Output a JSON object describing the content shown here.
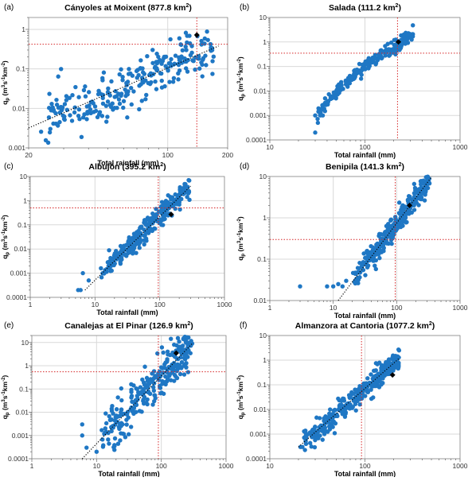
{
  "figure": {
    "colors": {
      "points": "#1f77c4",
      "trend": "#000000",
      "threshold": "#d62728",
      "grid": "#d9d9d9",
      "highlight": "#000000"
    },
    "panels_note": "six log-log scatter panels of peak discharge vs total rainfall"
  },
  "chart_data": [
    {
      "type": "scatter",
      "panel_label": "(a)",
      "title_text": "Cányoles at Moixent (877.8 km",
      "title_sup": "2",
      "title_close": ")",
      "xlabel": "Total rainfall (mm)",
      "ylabel": "q",
      "ylabel_sub": "p",
      "ylabel_units": " (m",
      "ylabel_u1": "3",
      "ylabel_mid": "s",
      "ylabel_u2": "-1",
      "ylabel_mid2": "km",
      "ylabel_u3": "-2",
      "ylabel_close": ")",
      "x_scale": "log",
      "y_scale": "log",
      "xlim": [
        20,
        200
      ],
      "ylim": [
        0.001,
        2
      ],
      "xticks": [
        {
          "v": 20,
          "label": "20"
        },
        {
          "v": 100,
          "label": "100"
        },
        {
          "v": 200,
          "label": "200"
        }
      ],
      "yticks": [
        {
          "v": 0.001,
          "label": "0.001"
        },
        {
          "v": 0.01,
          "label": "0.01"
        },
        {
          "v": 0.1,
          "label": "0.1"
        },
        {
          "v": 1,
          "label": "1"
        }
      ],
      "threshold_x": 140,
      "threshold_y": 0.42,
      "trend": {
        "x": [
          20,
          180
        ],
        "y": [
          0.0032,
          0.38
        ]
      },
      "highlight": {
        "x": 140,
        "y": 0.72
      },
      "cloud": {
        "seed": 11,
        "n": 260,
        "xmin": 23,
        "xmax": 170,
        "spread": 0.32,
        "tilt": 0.9
      },
      "extra_points": [
        [
          165,
          0.33
        ],
        [
          150,
          0.17
        ]
      ]
    },
    {
      "type": "scatter",
      "panel_label": "(b)",
      "title_text": "Salada (111.2 km",
      "title_sup": "2",
      "title_close": ")",
      "xlabel": "Total rainfall (mm)",
      "ylabel": "q",
      "ylabel_sub": "p",
      "ylabel_units": " (m",
      "ylabel_u1": "3",
      "ylabel_mid": "s",
      "ylabel_u2": "-1",
      "ylabel_mid2": "km",
      "ylabel_u3": "-2",
      "ylabel_close": ")",
      "x_scale": "log",
      "y_scale": "log",
      "xlim": [
        10,
        1000
      ],
      "ylim": [
        0.0001,
        10
      ],
      "xticks": [
        {
          "v": 10,
          "label": "10"
        },
        {
          "v": 100,
          "label": "100"
        },
        {
          "v": 1000,
          "label": "1000"
        }
      ],
      "yticks": [
        {
          "v": 0.0001,
          "label": "0.0001"
        },
        {
          "v": 0.001,
          "label": "0.001"
        },
        {
          "v": 0.01,
          "label": "0.01"
        },
        {
          "v": 0.1,
          "label": "0.1"
        },
        {
          "v": 1,
          "label": "1"
        },
        {
          "v": 10,
          "label": "10"
        }
      ],
      "threshold_x": 220,
      "threshold_y": 0.35,
      "trend": null,
      "highlight": {
        "x": 225,
        "y": 1.0
      },
      "cloud": {
        "seed": 23,
        "n": 230,
        "xmin": 30,
        "xmax": 320,
        "spread": 0.12,
        "tilt": 1.0
      },
      "curve": {
        "x": [
          30,
          60,
          100,
          150,
          220,
          320
        ],
        "y": [
          0.001,
          0.02,
          0.12,
          0.3,
          0.7,
          2.6
        ]
      },
      "extra_points": [
        [
          30,
          0.0002
        ],
        [
          32,
          0.0005
        ],
        [
          30,
          0.001
        ],
        [
          34,
          0.001
        ],
        [
          36,
          0.001
        ],
        [
          38,
          0.0015
        ],
        [
          40,
          0.003
        ]
      ]
    },
    {
      "type": "scatter",
      "panel_label": "(c)",
      "title_text": "Albujón (395.2 km",
      "title_sup": "2",
      "title_close": ")",
      "xlabel": "Total rainfall (mm)",
      "ylabel": "q",
      "ylabel_sub": "p",
      "ylabel_units": " (m",
      "ylabel_u1": "3",
      "ylabel_mid": "s",
      "ylabel_u2": "-1",
      "ylabel_mid2": "km",
      "ylabel_u3": "-2",
      "ylabel_close": ")",
      "x_scale": "log",
      "y_scale": "log",
      "xlim": [
        1,
        1000
      ],
      "ylim": [
        0.0001,
        10
      ],
      "xticks": [
        {
          "v": 1,
          "label": "1"
        },
        {
          "v": 10,
          "label": "10"
        },
        {
          "v": 100,
          "label": "100"
        },
        {
          "v": 1000,
          "label": "1000"
        }
      ],
      "yticks": [
        {
          "v": 0.0001,
          "label": "0.0001"
        },
        {
          "v": 0.001,
          "label": "0.001"
        },
        {
          "v": 0.01,
          "label": "0.01"
        },
        {
          "v": 0.1,
          "label": "0.1"
        },
        {
          "v": 1,
          "label": "1"
        },
        {
          "v": 10,
          "label": "10"
        }
      ],
      "threshold_x": 95,
      "threshold_y": 0.5,
      "trend": {
        "x": [
          7,
          300
        ],
        "y": [
          0.0002,
          4
        ]
      },
      "highlight": {
        "x": 150,
        "y": 0.27
      },
      "cloud": {
        "seed": 37,
        "n": 300,
        "xmin": 12,
        "xmax": 290,
        "spread": 0.22,
        "tilt": 1.0
      },
      "extra_points": [
        [
          5.5,
          0.0002
        ],
        [
          6,
          0.0002
        ],
        [
          6.5,
          0.001
        ],
        [
          8,
          0.0005
        ]
      ]
    },
    {
      "type": "scatter",
      "panel_label": "(d)",
      "title_text": "Benipila (141.3 km",
      "title_sup": "2",
      "title_close": ")",
      "xlabel": "Total rainfall (mm)",
      "ylabel": "q",
      "ylabel_sub": "p",
      "ylabel_units": " (m",
      "ylabel_u1": "3",
      "ylabel_mid": "s",
      "ylabel_u2": "-1",
      "ylabel_mid2": "km",
      "ylabel_u3": "-2",
      "ylabel_close": ")",
      "x_scale": "log",
      "y_scale": "log",
      "xlim": [
        1,
        1000
      ],
      "ylim": [
        0.01,
        10
      ],
      "xticks": [
        {
          "v": 1,
          "label": "1"
        },
        {
          "v": 10,
          "label": "10"
        },
        {
          "v": 100,
          "label": "100"
        },
        {
          "v": 1000,
          "label": "1000"
        }
      ],
      "yticks": [
        {
          "v": 0.01,
          "label": "0.01"
        },
        {
          "v": 0.1,
          "label": "0.1"
        },
        {
          "v": 1,
          "label": "1"
        },
        {
          "v": 10,
          "label": "10"
        }
      ],
      "threshold_x": 95,
      "threshold_y": 0.3,
      "trend": {
        "x": [
          12,
          360
        ],
        "y": [
          0.01,
          10
        ]
      },
      "highlight": {
        "x": 160,
        "y": 2.0
      },
      "cloud": {
        "seed": 51,
        "n": 300,
        "xmin": 20,
        "xmax": 330,
        "spread": 0.14,
        "tilt": 1.0
      },
      "extra_points": [
        [
          3,
          0.022
        ],
        [
          8,
          0.022
        ],
        [
          10,
          0.022
        ],
        [
          12,
          0.025
        ],
        [
          14,
          0.022
        ],
        [
          16,
          0.03
        ]
      ]
    },
    {
      "type": "scatter",
      "panel_label": "(e)",
      "title_text": "Canalejas at El Pinar (126.9 km",
      "title_sup": "2",
      "title_close": ")",
      "xlabel": "Total rainfall (mm)",
      "ylabel": "q",
      "ylabel_sub": "p",
      "ylabel_units": " (m",
      "ylabel_u1": "3",
      "ylabel_mid": "s",
      "ylabel_u2": "-1",
      "ylabel_mid2": "km",
      "ylabel_u3": "-2",
      "ylabel_close": ")",
      "x_scale": "log",
      "y_scale": "log",
      "xlim": [
        1,
        1000
      ],
      "ylim": [
        0.0001,
        20
      ],
      "xticks": [
        {
          "v": 1,
          "label": "1"
        },
        {
          "v": 10,
          "label": "10"
        },
        {
          "v": 100,
          "label": "100"
        },
        {
          "v": 1000,
          "label": "1000"
        }
      ],
      "yticks": [
        {
          "v": 0.0001,
          "label": "0.0001"
        },
        {
          "v": 0.001,
          "label": "0.001"
        },
        {
          "v": 0.01,
          "label": "0.01"
        },
        {
          "v": 0.1,
          "label": "0.1"
        },
        {
          "v": 1,
          "label": "1"
        },
        {
          "v": 10,
          "label": "10"
        }
      ],
      "threshold_x": 90,
      "threshold_y": 0.55,
      "trend": {
        "x": [
          6,
          300
        ],
        "y": [
          0.0001,
          9
        ]
      },
      "highlight": {
        "x": 170,
        "y": 3.5
      },
      "cloud": {
        "seed": 67,
        "n": 280,
        "xmin": 12,
        "xmax": 290,
        "spread": 0.45,
        "tilt": 1.0
      },
      "extra_points": [
        [
          6,
          0.003
        ],
        [
          6,
          0.001
        ],
        [
          7,
          0.0003
        ],
        [
          10,
          0.0002
        ],
        [
          300,
          9
        ]
      ]
    },
    {
      "type": "scatter",
      "panel_label": "(f)",
      "title_text": "Almanzora at Cantoria (1077.2 km",
      "title_sup": "2",
      "title_close": ")",
      "xlabel": "Total rainfall (mm)",
      "ylabel": "q",
      "ylabel_sub": "p",
      "ylabel_units": " (m",
      "ylabel_u1": "3",
      "ylabel_mid": "s",
      "ylabel_u2": "-1",
      "ylabel_mid2": "km",
      "ylabel_u3": "-2",
      "ylabel_close": ")",
      "x_scale": "log",
      "y_scale": "log",
      "xlim": [
        10,
        1000
      ],
      "ylim": [
        0.0001,
        10
      ],
      "xticks": [
        {
          "v": 10,
          "label": "10"
        },
        {
          "v": 100,
          "label": "100"
        },
        {
          "v": 1000,
          "label": "1000"
        }
      ],
      "yticks": [
        {
          "v": 0.0001,
          "label": "0.0001"
        },
        {
          "v": 0.001,
          "label": "0.001"
        },
        {
          "v": 0.01,
          "label": "0.01"
        },
        {
          "v": 0.1,
          "label": "0.1"
        },
        {
          "v": 1,
          "label": "1"
        },
        {
          "v": 10,
          "label": "10"
        }
      ],
      "threshold_x": 92,
      "threshold_y": null,
      "trend": {
        "x": [
          20,
          230
        ],
        "y": [
          0.0003,
          1.2
        ]
      },
      "highlight": {
        "x": 195,
        "y": 0.25
      },
      "cloud": {
        "seed": 83,
        "n": 320,
        "xmin": 22,
        "xmax": 230,
        "spread": 0.22,
        "tilt": 1.0
      },
      "extra_points": [
        [
          21,
          0.0003
        ],
        [
          22,
          0.0003
        ],
        [
          24,
          0.0004
        ]
      ]
    }
  ]
}
